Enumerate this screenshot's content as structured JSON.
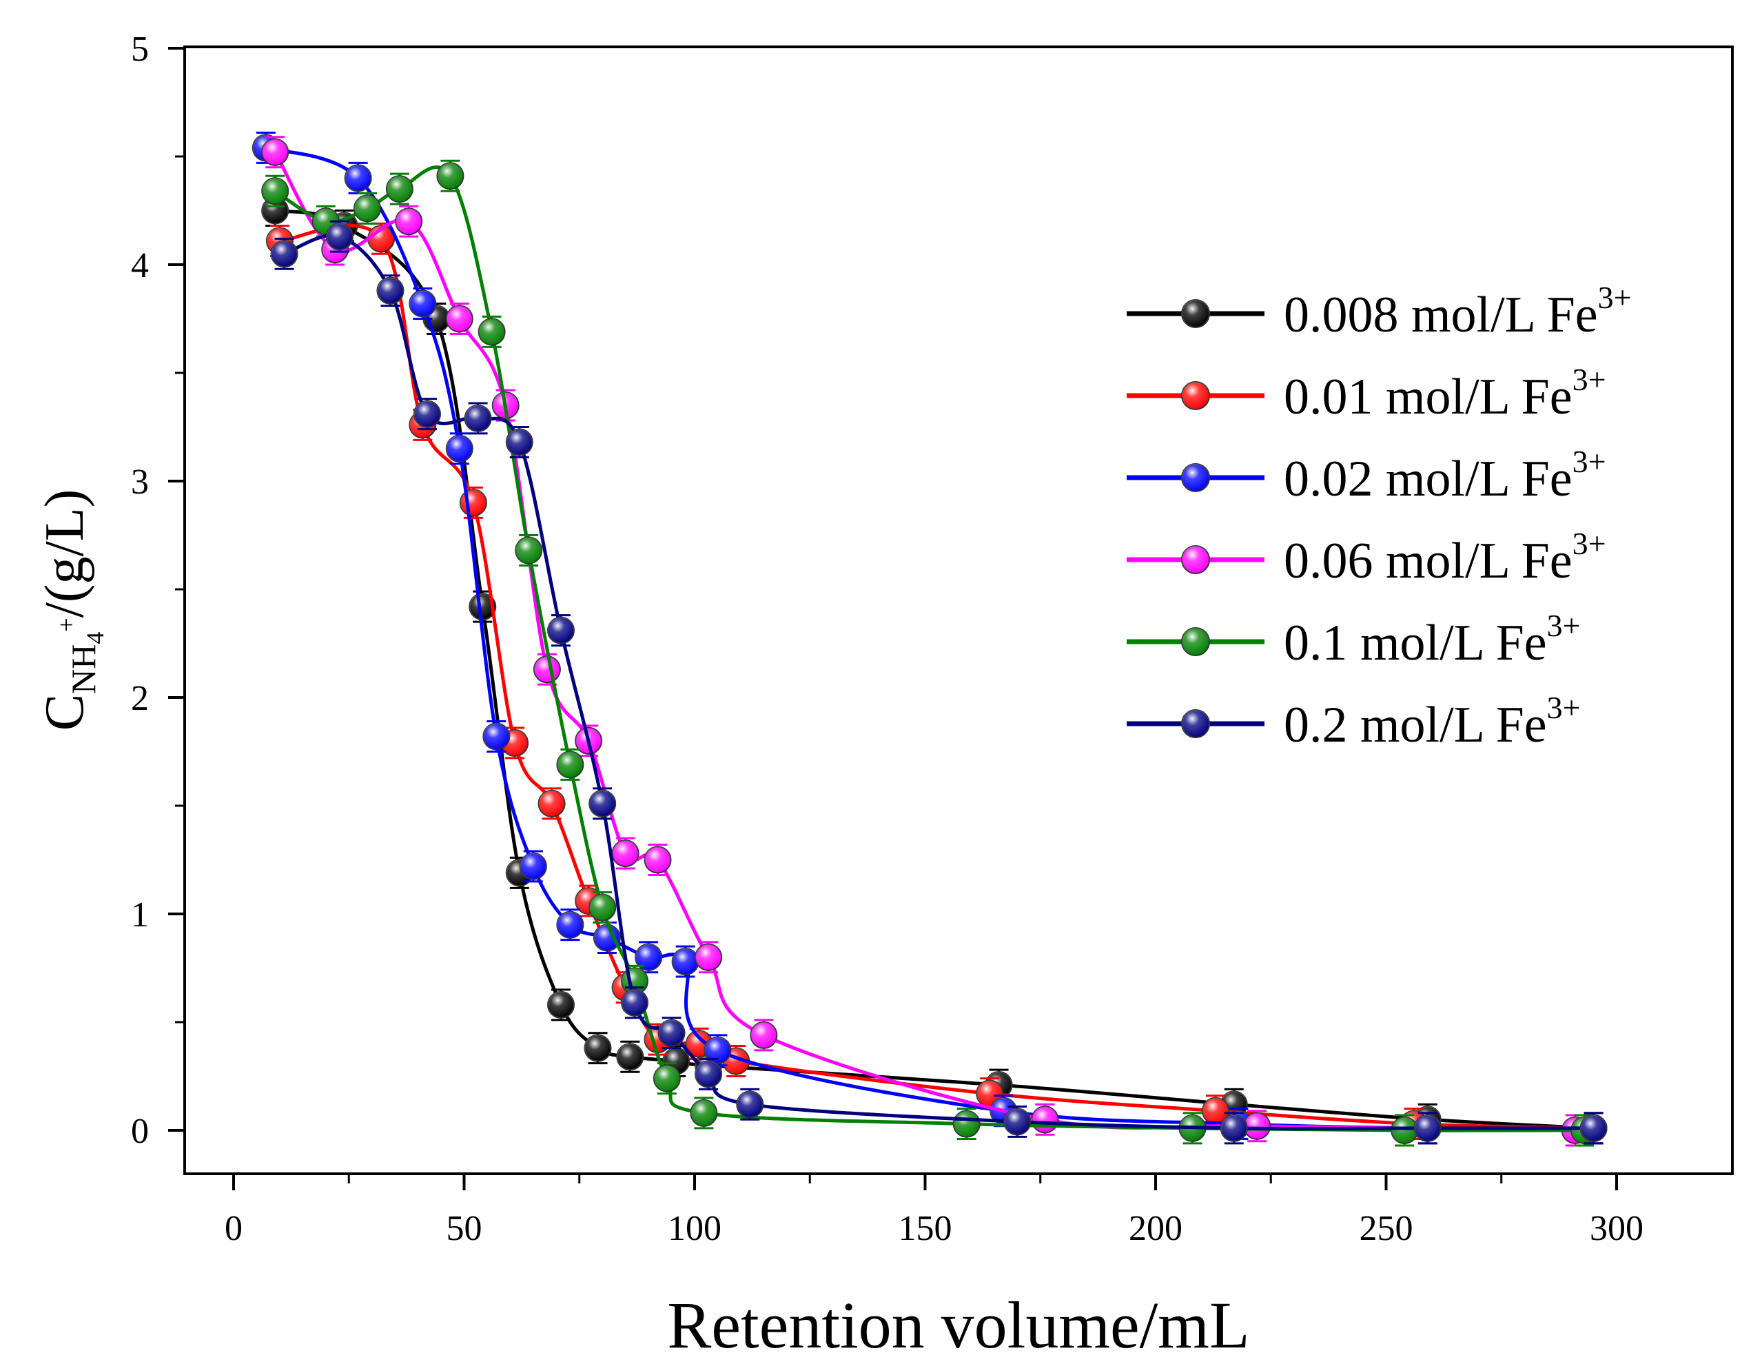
{
  "chart_data": {
    "type": "line",
    "xlabel": "Retention volume/mL",
    "ylabel": "C",
    "ylabel_sub": "NH",
    "ylabel_subsub": "4",
    "ylabel_sup": "+",
    "ylabel_unit": "/(g/L)",
    "xlim": [
      -10,
      325
    ],
    "ylim": [
      -0.2,
      5
    ],
    "xticks": [
      0,
      50,
      100,
      150,
      200,
      250,
      300
    ],
    "yticks": [
      0,
      1,
      2,
      3,
      4,
      5
    ],
    "legend_position": "right",
    "series": [
      {
        "name": "0.008 mol/L Fe",
        "sup": "3+",
        "color": "#000000",
        "x": [
          9,
          24,
          44,
          54,
          62,
          71,
          79,
          86,
          96,
          103,
          166,
          217,
          259,
          295
        ],
        "y": [
          4.25,
          4.18,
          3.75,
          2.42,
          1.19,
          0.58,
          0.38,
          0.34,
          0.32,
          0.3,
          0.21,
          0.12,
          0.05,
          0.01
        ]
      },
      {
        "name": "0.01 mol/L Fe",
        "sup": "3+",
        "color": "#ff0000",
        "x": [
          10,
          32,
          41,
          52,
          61,
          69,
          77,
          85,
          92,
          101,
          109,
          164,
          213,
          256,
          295
        ],
        "y": [
          4.11,
          4.12,
          3.26,
          2.9,
          1.79,
          1.51,
          1.06,
          0.66,
          0.42,
          0.4,
          0.32,
          0.17,
          0.09,
          0.03,
          0.01
        ]
      },
      {
        "name": "0.02 mol/L Fe",
        "sup": "3+",
        "color": "#0000ff",
        "x": [
          7,
          27,
          41,
          49,
          57,
          65,
          73,
          81,
          90,
          98,
          105,
          167,
          218,
          259,
          295
        ],
        "y": [
          4.54,
          4.4,
          3.82,
          3.15,
          1.82,
          1.22,
          0.95,
          0.89,
          0.8,
          0.78,
          0.37,
          0.09,
          0.03,
          0.01,
          0.01
        ]
      },
      {
        "name": "0.06 mol/L Fe",
        "sup": "3+",
        "color": "#ff00ff",
        "x": [
          9,
          22,
          38,
          49,
          59,
          68,
          77,
          85,
          92,
          103,
          115,
          176,
          222,
          291
        ],
        "y": [
          4.52,
          4.07,
          4.2,
          3.75,
          3.35,
          2.13,
          1.8,
          1.28,
          1.25,
          0.8,
          0.44,
          0.05,
          0.02,
          0.0
        ]
      },
      {
        "name": "0.1 mol/L Fe",
        "sup": "3+",
        "color": "#008000",
        "x": [
          9,
          20,
          29,
          36,
          47,
          56,
          64,
          73,
          80,
          87,
          94,
          102,
          159,
          208,
          254,
          293
        ],
        "y": [
          4.34,
          4.2,
          4.26,
          4.35,
          4.41,
          3.69,
          2.68,
          1.69,
          1.03,
          0.69,
          0.24,
          0.08,
          0.03,
          0.01,
          0.0,
          0.0
        ]
      },
      {
        "name": "0.2 mol/L Fe",
        "sup": "3+",
        "color": "#000080",
        "x": [
          11,
          23,
          34,
          42,
          53,
          62,
          71,
          80,
          87,
          95,
          103,
          112,
          170,
          217,
          259,
          295
        ],
        "y": [
          4.05,
          4.13,
          3.88,
          3.31,
          3.29,
          3.18,
          2.31,
          1.51,
          0.59,
          0.45,
          0.26,
          0.12,
          0.04,
          0.01,
          0.01,
          0.01
        ]
      }
    ]
  }
}
